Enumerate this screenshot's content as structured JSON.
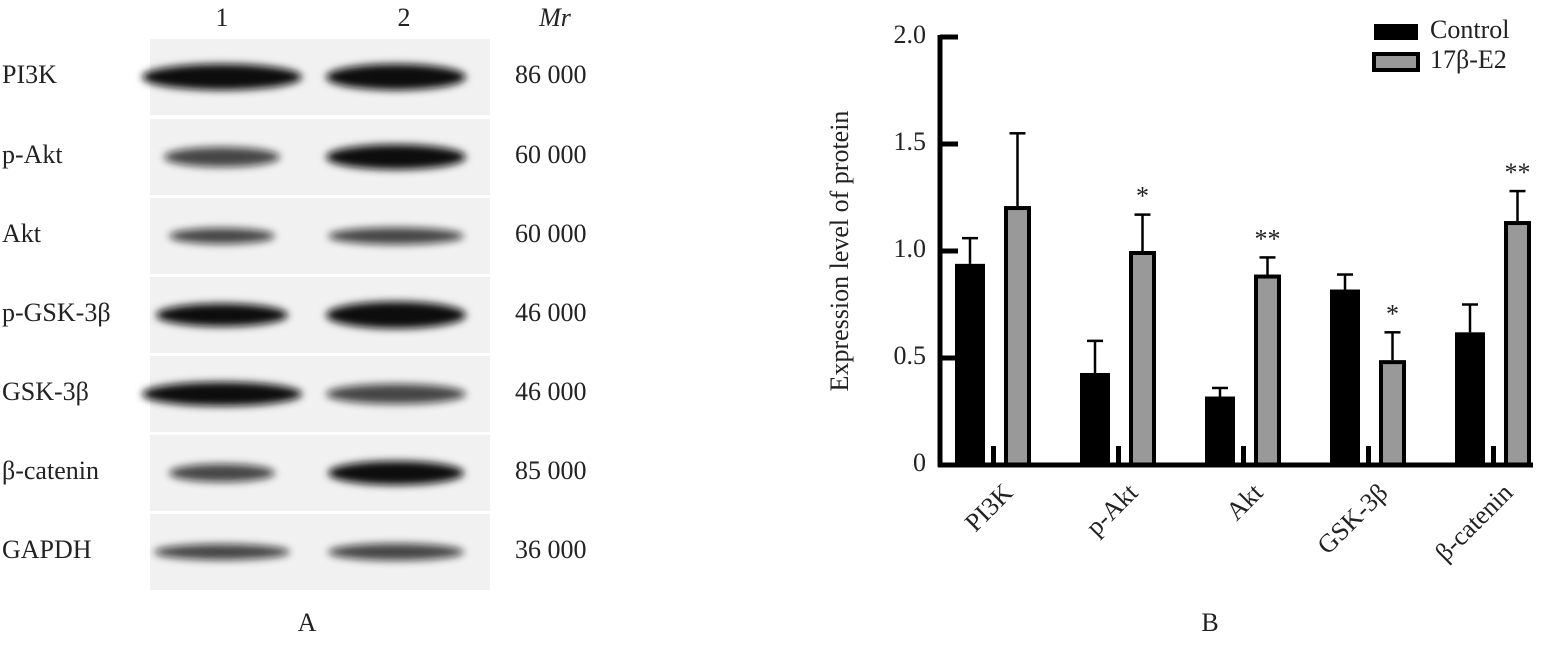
{
  "panel_a": {
    "lanes": [
      "1",
      "2"
    ],
    "mr_header": "Mr",
    "rows": [
      {
        "protein": "PI3K",
        "mr": "86 000"
      },
      {
        "protein": "p-Akt",
        "mr": "60 000"
      },
      {
        "protein": "Akt",
        "mr": "60 000"
      },
      {
        "protein": "p-GSK-3β",
        "mr": "46 000"
      },
      {
        "protein": "GSK-3β",
        "mr": "46 000"
      },
      {
        "protein": "β-catenin",
        "mr": "85 000"
      },
      {
        "protein": "GAPDH",
        "mr": "36 000"
      }
    ],
    "label": "A"
  },
  "chart_data": {
    "type": "bar",
    "panel_label": "B",
    "ylabel": "Expression level of protein",
    "categories": [
      "PI3K",
      "p-Akt",
      "Akt",
      "GSK-3β",
      "β-catenin"
    ],
    "series": [
      {
        "name": "Control",
        "color": "#000000",
        "values": [
          0.94,
          0.43,
          0.32,
          0.82,
          0.62
        ],
        "errors": [
          0.12,
          0.15,
          0.04,
          0.07,
          0.13
        ]
      },
      {
        "name": "17β-E2",
        "color": "#999999",
        "values": [
          1.21,
          1.0,
          0.89,
          0.49,
          1.14
        ],
        "errors": [
          0.34,
          0.17,
          0.08,
          0.13,
          0.14
        ],
        "significance": [
          null,
          "*",
          "**",
          "*",
          "**"
        ]
      }
    ],
    "ylim": [
      0,
      2
    ],
    "yticks": [
      0,
      0.5,
      {
        "value": 1,
        "label": "1.0"
      },
      1.5,
      {
        "value": 2,
        "label": "2.0"
      }
    ],
    "legend": "top-right"
  }
}
